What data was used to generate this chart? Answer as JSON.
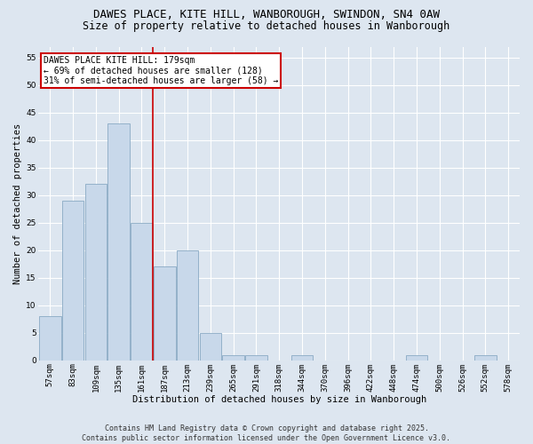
{
  "title": "DAWES PLACE, KITE HILL, WANBOROUGH, SWINDON, SN4 0AW",
  "subtitle": "Size of property relative to detached houses in Wanborough",
  "xlabel": "Distribution of detached houses by size in Wanborough",
  "ylabel": "Number of detached properties",
  "categories": [
    "57sqm",
    "83sqm",
    "109sqm",
    "135sqm",
    "161sqm",
    "187sqm",
    "213sqm",
    "239sqm",
    "265sqm",
    "291sqm",
    "318sqm",
    "344sqm",
    "370sqm",
    "396sqm",
    "422sqm",
    "448sqm",
    "474sqm",
    "500sqm",
    "526sqm",
    "552sqm",
    "578sqm"
  ],
  "values": [
    8,
    29,
    32,
    43,
    25,
    17,
    20,
    5,
    1,
    1,
    0,
    1,
    0,
    0,
    0,
    0,
    1,
    0,
    0,
    1,
    0
  ],
  "bar_color": "#c8d8ea",
  "bar_edge_color": "#8aaac4",
  "ylim": [
    0,
    57
  ],
  "yticks": [
    0,
    5,
    10,
    15,
    20,
    25,
    30,
    35,
    40,
    45,
    50,
    55
  ],
  "vline_x_index": 4.5,
  "vline_color": "#cc0000",
  "annotation_text": "DAWES PLACE KITE HILL: 179sqm\n← 69% of detached houses are smaller (128)\n31% of semi-detached houses are larger (58) →",
  "annotation_box_facecolor": "#ffffff",
  "annotation_box_edgecolor": "#cc0000",
  "footer_line1": "Contains HM Land Registry data © Crown copyright and database right 2025.",
  "footer_line2": "Contains public sector information licensed under the Open Government Licence v3.0.",
  "background_color": "#dde6f0",
  "plot_bg_color": "#dde6f0",
  "grid_color": "#ffffff",
  "title_fontsize": 9,
  "subtitle_fontsize": 8.5,
  "axis_label_fontsize": 7.5,
  "tick_fontsize": 6.5,
  "annotation_fontsize": 7,
  "footer_fontsize": 6
}
